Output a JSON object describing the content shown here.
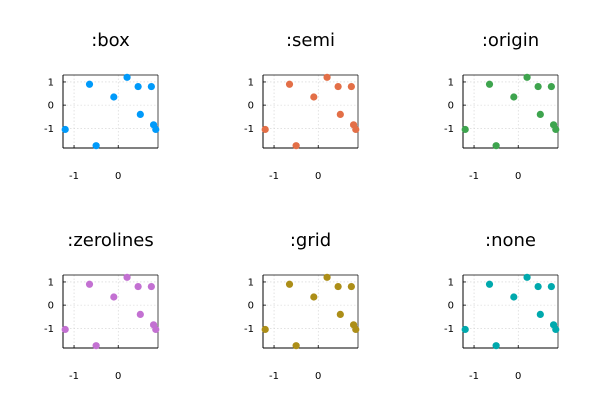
{
  "chart_data": {
    "type": "scatter",
    "x": [
      -1.2,
      -0.65,
      -0.1,
      0.2,
      0.5,
      0.45,
      0.75,
      0.8,
      0.85,
      -0.5
    ],
    "y": [
      -1.05,
      0.9,
      0.35,
      1.2,
      -0.4,
      0.8,
      0.8,
      -0.85,
      -1.05,
      -1.75
    ],
    "xlim": [
      -1.25,
      0.9
    ],
    "ylim": [
      -1.85,
      1.3
    ],
    "xticks": [
      -1,
      0
    ],
    "xtick_labels": [
      "-1",
      "0"
    ],
    "yticks": [
      1,
      0,
      -1
    ],
    "ytick_labels": [
      "1",
      "0",
      "-1"
    ],
    "subplots": [
      {
        "title": ":box",
        "color": "#009AFA",
        "framestyle": "box",
        "grid": true
      },
      {
        "title": ":semi",
        "color": "#E36F47",
        "framestyle": "semi",
        "grid": true
      },
      {
        "title": ":origin",
        "color": "#3EA44E",
        "framestyle": "origin",
        "grid": true
      },
      {
        "title": ":zerolines",
        "color": "#C371D2",
        "framestyle": "zerolines",
        "grid": true
      },
      {
        "title": ":grid",
        "color": "#AC8E18",
        "framestyle": "grid",
        "grid": true
      },
      {
        "title": ":none",
        "color": "#00A9AD",
        "framestyle": "none",
        "grid": true
      }
    ]
  }
}
